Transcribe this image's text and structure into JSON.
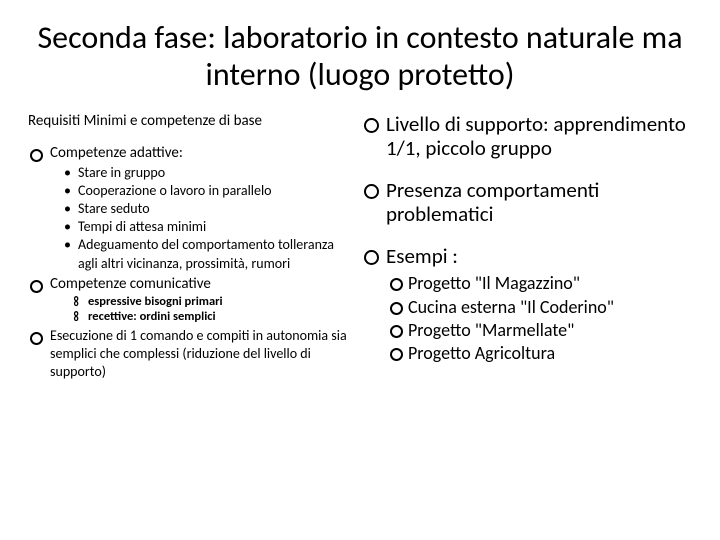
{
  "title": "Seconda fase: laboratorio in contesto naturale ma interno (luogo protetto)",
  "left": {
    "subtitle": "Requisiti Minimi e competenze di base",
    "item1": "Competenze adattive:",
    "sub1": "Stare in gruppo",
    "sub2": "Cooperazione o lavoro in parallelo",
    "sub3": "Stare seduto",
    "sub4": "Tempi di attesa minimi",
    "sub5": "Adeguamento del comportamento tolleranza agli altri vicinanza, prossimità, rumori",
    "item2": "Competenze comunicative",
    "inf1": "espressive bisogni primari",
    "inf2": "recettive: ordini semplici",
    "item3": "Esecuzione di 1 comando e compiti in autonomia sia semplici che complessi (riduzione del livello di supporto)"
  },
  "right": {
    "r1": "Livello di supporto: apprendimento 1/1, piccolo gruppo",
    "r2": "Presenza comportamenti problematici",
    "r3": "Esempi :",
    "e1": "Progetto \"Il Magazzino\"",
    "e2": "Cucina esterna \"Il Coderino\"",
    "e3": "Progetto \"Marmellate\"",
    "e4": "Progetto Agricoltura"
  }
}
